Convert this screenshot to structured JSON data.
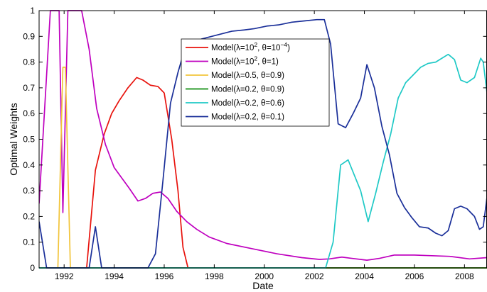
{
  "chart_data": {
    "type": "line",
    "title": "",
    "xlabel": "Date",
    "ylabel": "Optimal Weights",
    "xlim": [
      1991.0,
      2008.9
    ],
    "ylim": [
      0,
      1
    ],
    "xticks": [
      1992,
      1994,
      1996,
      1998,
      2000,
      2002,
      2004,
      2006,
      2008
    ],
    "xtick_labels": [
      "1992",
      "1994",
      "1996",
      "1998",
      "2000",
      "2002",
      "2004",
      "2006",
      "2008"
    ],
    "yticks": [
      0,
      0.1,
      0.2,
      0.3,
      0.4,
      0.5,
      0.6,
      0.7,
      0.8,
      0.9,
      1
    ],
    "ytick_labels": [
      "0",
      "0.1",
      "0.2",
      "0.3",
      "0.4",
      "0.5",
      "0.6",
      "0.7",
      "0.8",
      "0.9",
      "1"
    ],
    "grid": false,
    "legend_position": "top-center",
    "series": [
      {
        "name": "Model(λ=10^2, θ=10^-4)",
        "label_parts": [
          "Model(λ=10",
          "2",
          ", θ=10",
          "−4",
          ")"
        ],
        "color": "#e8120c",
        "points": [
          [
            1991.0,
            0
          ],
          [
            1992.9,
            0
          ],
          [
            1993.25,
            0.38
          ],
          [
            1993.6,
            0.52
          ],
          [
            1993.9,
            0.6
          ],
          [
            1994.2,
            0.65
          ],
          [
            1994.55,
            0.7
          ],
          [
            1994.9,
            0.74
          ],
          [
            1995.15,
            0.73
          ],
          [
            1995.45,
            0.71
          ],
          [
            1995.75,
            0.705
          ],
          [
            1996.0,
            0.68
          ],
          [
            1996.3,
            0.5
          ],
          [
            1996.55,
            0.3
          ],
          [
            1996.75,
            0.08
          ],
          [
            1996.95,
            0
          ],
          [
            2008.9,
            0
          ]
        ]
      },
      {
        "name": "Model(λ=10^2, θ=1)",
        "label_parts": [
          "Model(λ=10",
          "2",
          ", θ=1)"
        ],
        "color": "#bf00bf",
        "points": [
          [
            1991.0,
            0.25
          ],
          [
            1991.45,
            1
          ],
          [
            1991.8,
            1
          ],
          [
            1991.95,
            0.215
          ],
          [
            1992.15,
            1
          ],
          [
            1992.7,
            1
          ],
          [
            1993.0,
            0.85
          ],
          [
            1993.3,
            0.62
          ],
          [
            1993.65,
            0.48
          ],
          [
            1994.0,
            0.39
          ],
          [
            1994.3,
            0.35
          ],
          [
            1994.6,
            0.31
          ],
          [
            1994.95,
            0.26
          ],
          [
            1995.25,
            0.27
          ],
          [
            1995.55,
            0.29
          ],
          [
            1995.85,
            0.295
          ],
          [
            1996.15,
            0.27
          ],
          [
            1996.5,
            0.22
          ],
          [
            1996.9,
            0.18
          ],
          [
            1997.3,
            0.15
          ],
          [
            1997.8,
            0.12
          ],
          [
            1998.5,
            0.095
          ],
          [
            1999.5,
            0.075
          ],
          [
            2000.5,
            0.055
          ],
          [
            2001.5,
            0.04
          ],
          [
            2002.2,
            0.033
          ],
          [
            2002.6,
            0.035
          ],
          [
            2003.1,
            0.042
          ],
          [
            2003.5,
            0.037
          ],
          [
            2004.1,
            0.03
          ],
          [
            2004.6,
            0.037
          ],
          [
            2005.2,
            0.05
          ],
          [
            2006.0,
            0.05
          ],
          [
            2006.5,
            0.048
          ],
          [
            2007.4,
            0.045
          ],
          [
            2008.2,
            0.035
          ],
          [
            2008.9,
            0.04
          ]
        ]
      },
      {
        "name": "Model(λ=0.5, θ=0.9)",
        "label_parts": [
          "Model(λ=0.5, θ=0.9)"
        ],
        "color": "#f2c43a",
        "points": [
          [
            1991.0,
            0
          ],
          [
            1991.75,
            0
          ],
          [
            1991.95,
            0.78
          ],
          [
            1992.05,
            0.78
          ],
          [
            1992.25,
            0
          ],
          [
            2008.9,
            0
          ]
        ]
      },
      {
        "name": "Model(λ=0.2, θ=0.9)",
        "label_parts": [
          "Model(λ=0.2, θ=0.9)"
        ],
        "color": "#0c8c0c",
        "points": [
          [
            1991.0,
            0
          ],
          [
            2008.9,
            0
          ]
        ]
      },
      {
        "name": "Model(λ=0.2, θ=0.6)",
        "label_parts": [
          "Model(λ=0.2, θ=0.6)"
        ],
        "color": "#1fc9c6",
        "points": [
          [
            1991.0,
            0
          ],
          [
            2002.45,
            0
          ],
          [
            2002.75,
            0.1
          ],
          [
            2003.05,
            0.4
          ],
          [
            2003.35,
            0.42
          ],
          [
            2003.6,
            0.36
          ],
          [
            2003.85,
            0.3
          ],
          [
            2004.15,
            0.18
          ],
          [
            2004.45,
            0.29
          ],
          [
            2004.75,
            0.41
          ],
          [
            2005.05,
            0.52
          ],
          [
            2005.35,
            0.66
          ],
          [
            2005.65,
            0.72
          ],
          [
            2005.95,
            0.75
          ],
          [
            2006.25,
            0.78
          ],
          [
            2006.55,
            0.795
          ],
          [
            2006.85,
            0.8
          ],
          [
            2007.1,
            0.815
          ],
          [
            2007.35,
            0.83
          ],
          [
            2007.6,
            0.81
          ],
          [
            2007.85,
            0.73
          ],
          [
            2008.1,
            0.72
          ],
          [
            2008.4,
            0.74
          ],
          [
            2008.65,
            0.815
          ],
          [
            2008.75,
            0.8
          ],
          [
            2008.9,
            0.68
          ]
        ]
      },
      {
        "name": "Model(λ=0.2, θ=0.1)",
        "label_parts": [
          "Model(λ=0.2, θ=0.1)"
        ],
        "color": "#1a2f99",
        "points": [
          [
            1991.0,
            0.18
          ],
          [
            1991.3,
            0
          ],
          [
            1993.0,
            0
          ],
          [
            1993.25,
            0.16
          ],
          [
            1993.5,
            0
          ],
          [
            1995.35,
            0
          ],
          [
            1995.65,
            0.055
          ],
          [
            1995.95,
            0.34
          ],
          [
            1996.25,
            0.64
          ],
          [
            1996.55,
            0.76
          ],
          [
            1996.85,
            0.86
          ],
          [
            1997.2,
            0.875
          ],
          [
            1997.5,
            0.89
          ],
          [
            1997.9,
            0.9
          ],
          [
            1998.3,
            0.91
          ],
          [
            1998.7,
            0.92
          ],
          [
            1999.2,
            0.925
          ],
          [
            1999.6,
            0.93
          ],
          [
            2000.1,
            0.94
          ],
          [
            2000.6,
            0.945
          ],
          [
            2001.1,
            0.955
          ],
          [
            2001.6,
            0.96
          ],
          [
            2002.1,
            0.965
          ],
          [
            2002.4,
            0.965
          ],
          [
            2002.65,
            0.87
          ],
          [
            2002.95,
            0.56
          ],
          [
            2003.25,
            0.545
          ],
          [
            2003.55,
            0.6
          ],
          [
            2003.85,
            0.66
          ],
          [
            2004.1,
            0.79
          ],
          [
            2004.4,
            0.7
          ],
          [
            2004.7,
            0.55
          ],
          [
            2005.0,
            0.44
          ],
          [
            2005.3,
            0.29
          ],
          [
            2005.6,
            0.235
          ],
          [
            2005.9,
            0.195
          ],
          [
            2006.2,
            0.16
          ],
          [
            2006.55,
            0.155
          ],
          [
            2006.85,
            0.135
          ],
          [
            2007.1,
            0.125
          ],
          [
            2007.35,
            0.145
          ],
          [
            2007.6,
            0.23
          ],
          [
            2007.85,
            0.24
          ],
          [
            2008.1,
            0.23
          ],
          [
            2008.4,
            0.2
          ],
          [
            2008.6,
            0.15
          ],
          [
            2008.75,
            0.16
          ],
          [
            2008.9,
            0.275
          ]
        ]
      }
    ]
  }
}
